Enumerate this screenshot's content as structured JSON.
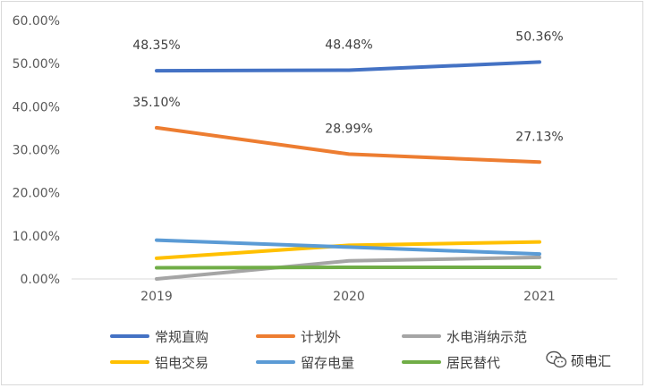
{
  "chart_data": {
    "type": "line",
    "title": "",
    "xlabel": "",
    "ylabel": "",
    "categories": [
      "2019",
      "2020",
      "2021"
    ],
    "ylim": [
      0,
      60
    ],
    "yticks": [
      "0.00%",
      "10.00%",
      "20.00%",
      "30.00%",
      "40.00%",
      "50.00%",
      "60.00%"
    ],
    "grid": false,
    "legend_position": "bottom",
    "series": [
      {
        "name": "常规直购",
        "values": [
          48.35,
          48.48,
          50.36
        ],
        "color": "#4472c4",
        "labels": [
          "48.35%",
          "48.48%",
          "50.36%"
        ]
      },
      {
        "name": "计划外",
        "values": [
          35.1,
          28.99,
          27.13
        ],
        "color": "#ed7d31",
        "labels": [
          "35.10%",
          "28.99%",
          "27.13%"
        ]
      },
      {
        "name": "水电消纳示范",
        "values": [
          0.0,
          4.2,
          5.0
        ],
        "color": "#a5a5a5"
      },
      {
        "name": "铝电交易",
        "values": [
          4.8,
          7.8,
          8.6
        ],
        "color": "#ffc000"
      },
      {
        "name": "留存电量",
        "values": [
          9.0,
          7.4,
          5.8
        ],
        "color": "#5b9bd5"
      },
      {
        "name": "居民替代",
        "values": [
          2.6,
          2.7,
          2.7
        ],
        "color": "#70ad47"
      }
    ]
  },
  "watermark": {
    "icon": "wechat-icon",
    "text": "硕电汇"
  }
}
